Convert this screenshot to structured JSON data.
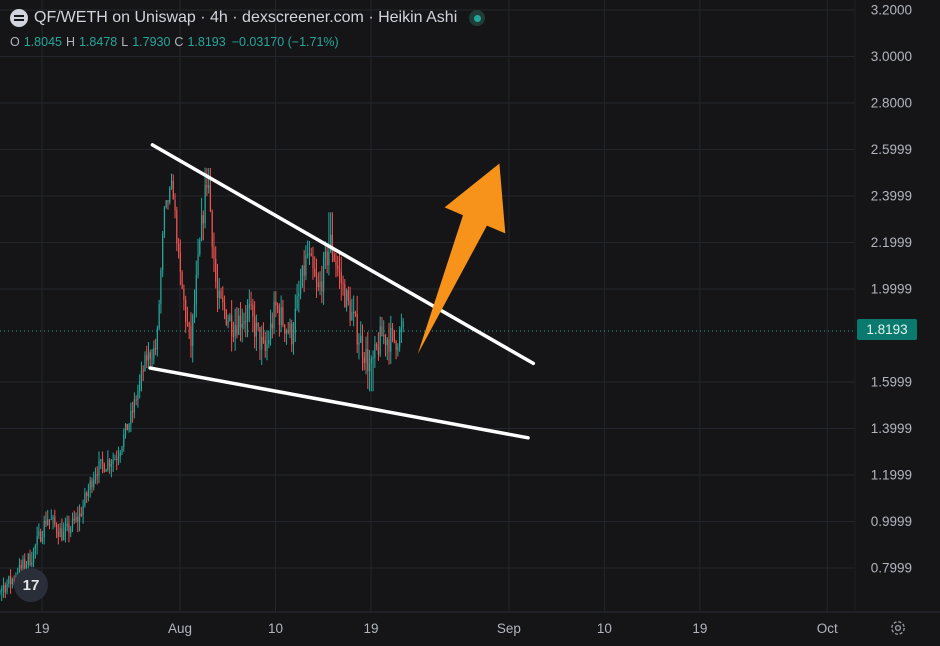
{
  "header": {
    "title": "QF/WETH on Uniswap · 4h · dexscreener.com · Heikin Ashi"
  },
  "ohlc": {
    "o_label": "O",
    "o_value": "1.8045",
    "h_label": "H",
    "h_value": "1.8478",
    "l_label": "L",
    "l_value": "1.7930",
    "c_label": "C",
    "c_value": "1.8193",
    "change": "−0.03170 (−1.71%)"
  },
  "current_price_label": "1.8193",
  "watermark": "17",
  "colors": {
    "background": "#151518",
    "up": "#26a69a",
    "down": "#ef5350",
    "trendline": "#ffffff",
    "arrow": "#f7931a",
    "grid": "#24262d"
  },
  "chart_data": {
    "type": "candlestick",
    "title": "QF/WETH on Uniswap · 4h · dexscreener.com · Heikin Ashi",
    "current_price": 1.8193,
    "y_axis": {
      "min": 0.62,
      "max": 3.22,
      "ticks": [
        "3.2000",
        "3.0000",
        "2.8000",
        "2.5999",
        "2.3999",
        "2.1999",
        "1.9999",
        "1.5999",
        "1.3999",
        "1.1999",
        "0.9999",
        "0.7999"
      ],
      "tick_values": [
        3.2,
        3.0,
        2.8,
        2.6,
        2.4,
        2.2,
        2.0,
        1.6,
        1.4,
        1.2,
        1.0,
        0.8
      ]
    },
    "x_axis": {
      "ticks": [
        "19",
        "Aug",
        "10",
        "19",
        "Sep",
        "10",
        "19",
        "Oct"
      ],
      "tick_days": [
        -13,
        0,
        9,
        18,
        31,
        40,
        49,
        61
      ]
    },
    "candles_ohlc_by_day": [
      {
        "day": -18.8,
        "segment": "uptrend",
        "start": 0.66,
        "end": 0.66
      },
      {
        "day": -16.0,
        "segment": "uptrend",
        "start": 0.66,
        "end": 0.74
      },
      {
        "day": -14.0,
        "segment": "uptrend",
        "start": 0.74,
        "end": 0.85
      },
      {
        "day": -12.5,
        "segment": "uptrend",
        "start": 0.85,
        "end": 1.02
      },
      {
        "day": -11.0,
        "segment": "uptrend",
        "start": 1.02,
        "end": 0.94
      },
      {
        "day": -9.5,
        "segment": "uptrend",
        "start": 0.94,
        "end": 1.02
      },
      {
        "day": -8.0,
        "segment": "uptrend",
        "start": 1.02,
        "end": 1.22
      },
      {
        "day": -6.0,
        "segment": "uptrend",
        "start": 1.22,
        "end": 1.28
      },
      {
        "day": -4.6,
        "segment": "uptrend",
        "start": 1.28,
        "end": 1.45
      },
      {
        "day": -3.2,
        "segment": "uptrend",
        "start": 1.45,
        "end": 1.7
      },
      {
        "day": -2.2,
        "segment": "uptrend",
        "start": 1.7,
        "end": 1.75
      },
      {
        "day": -1.5,
        "segment": "uptrend",
        "start": 1.75,
        "end": 2.32
      },
      {
        "day": -0.7,
        "segment": "uptrend",
        "start": 2.32,
        "end": 2.45
      },
      {
        "day": 0.0,
        "segment": "consolidation",
        "start": 2.45,
        "end": 2.05
      },
      {
        "day": 1.0,
        "segment": "consolidation",
        "start": 2.05,
        "end": 1.75
      },
      {
        "day": 2.0,
        "segment": "consolidation",
        "start": 1.75,
        "end": 2.25
      },
      {
        "day": 2.6,
        "segment": "consolidation",
        "start": 2.25,
        "end": 2.5
      },
      {
        "day": 3.5,
        "segment": "consolidation",
        "start": 2.5,
        "end": 1.95
      },
      {
        "day": 5.0,
        "segment": "consolidation",
        "start": 1.95,
        "end": 1.85
      },
      {
        "day": 6.5,
        "segment": "consolidation",
        "start": 1.85,
        "end": 1.9
      },
      {
        "day": 8.0,
        "segment": "consolidation",
        "start": 1.9,
        "end": 1.72
      },
      {
        "day": 9.0,
        "segment": "consolidation",
        "start": 1.72,
        "end": 1.92
      },
      {
        "day": 10.5,
        "segment": "consolidation",
        "start": 1.92,
        "end": 1.8
      },
      {
        "day": 12.0,
        "segment": "consolidation",
        "start": 1.8,
        "end": 2.15
      },
      {
        "day": 13.0,
        "segment": "consolidation",
        "start": 2.15,
        "end": 1.98
      },
      {
        "day": 14.2,
        "segment": "consolidation",
        "start": 1.98,
        "end": 2.2
      },
      {
        "day": 15.5,
        "segment": "consolidation",
        "start": 2.2,
        "end": 1.98
      },
      {
        "day": 16.6,
        "segment": "consolidation",
        "start": 1.98,
        "end": 1.83
      },
      {
        "day": 18.0,
        "segment": "consolidation",
        "start": 1.83,
        "end": 1.65
      },
      {
        "day": 19.0,
        "segment": "consolidation",
        "start": 1.65,
        "end": 1.8
      },
      {
        "day": 20.2,
        "segment": "consolidation",
        "start": 1.8,
        "end": 1.78
      },
      {
        "day": 21.1,
        "segment": "consolidation",
        "start": 1.78,
        "end": 1.82
      }
    ],
    "annotations": [
      {
        "type": "trendline",
        "from": {
          "day": -2.6,
          "price": 2.62
        },
        "to": {
          "day": 33.3,
          "price": 1.68
        }
      },
      {
        "type": "trendline",
        "from": {
          "day": -2.8,
          "price": 1.66
        },
        "to": {
          "day": 32.8,
          "price": 1.36
        }
      },
      {
        "type": "arrow",
        "from": {
          "day": 22.4,
          "price": 1.72
        },
        "to": {
          "day": 30.1,
          "price": 2.54
        }
      }
    ]
  }
}
